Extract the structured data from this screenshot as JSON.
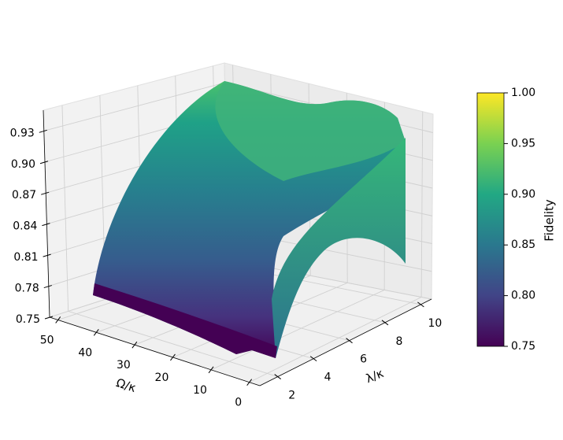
{
  "chart_data": {
    "type": "surface",
    "xlabel": "Ω/κ",
    "ylabel": "λ/κ",
    "colorbar_label": "Fidelity",
    "xlim": [
      0,
      50
    ],
    "xticks": [
      0,
      10,
      20,
      30,
      40,
      50
    ],
    "ylim": [
      1,
      10.6
    ],
    "yticks": [
      2,
      4,
      6,
      8,
      10
    ],
    "zlim": [
      0.75,
      0.95
    ],
    "zticks": [
      0.75,
      0.78,
      0.81,
      0.84,
      0.87,
      {
        "value": 0.9,
        "label": "0.90"
      },
      0.93
    ],
    "colorbar_lim": [
      0.75,
      1.0
    ],
    "colorbar_ticks": [
      0.75,
      {
        "value": 0.8,
        "label": "0.80"
      },
      0.85,
      {
        "value": 0.9,
        "label": "0.90"
      },
      0.95,
      {
        "value": 1.0,
        "label": "1.00"
      }
    ],
    "colormap": "viridis",
    "grid": true
  }
}
